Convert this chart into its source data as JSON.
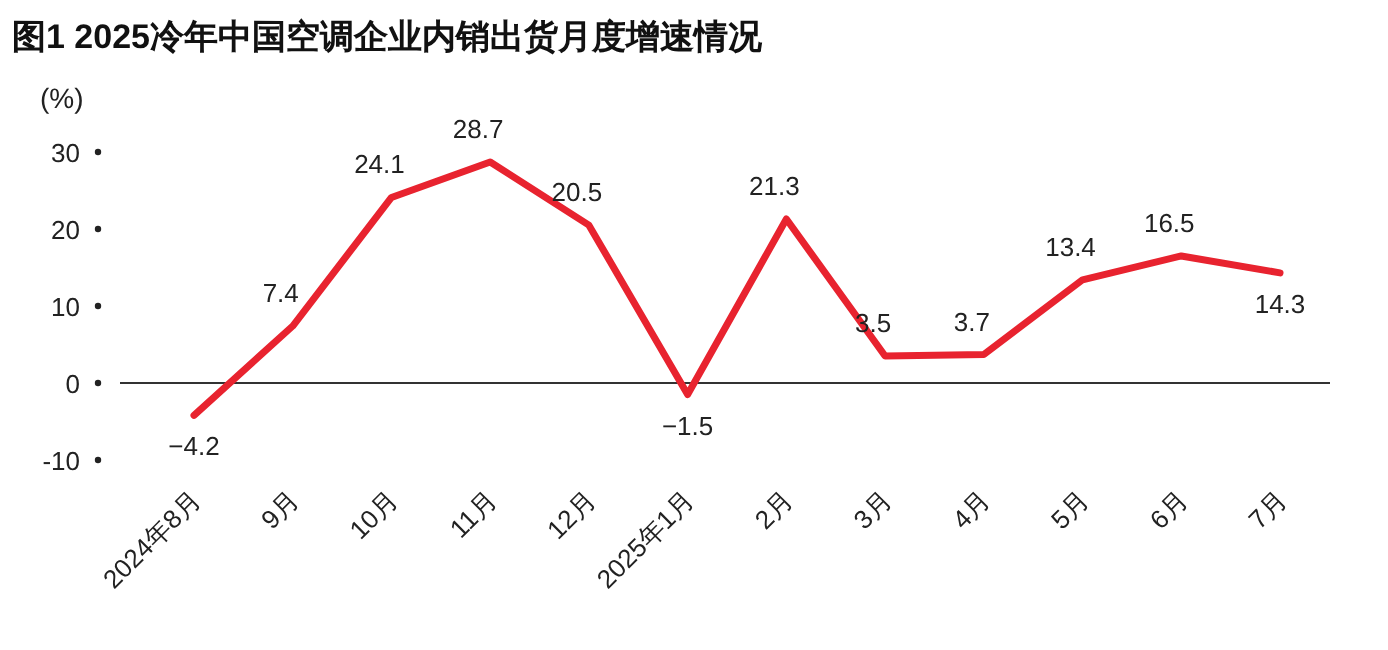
{
  "chart_data": {
    "type": "line",
    "title": "图1  2025冷年中国空调企业内销出货月度增速情况",
    "ylabel": "(%)",
    "categories": [
      "2024年8月",
      "9月",
      "10月",
      "11月",
      "12月",
      "2025年1月",
      "2月",
      "3月",
      "4月",
      "5月",
      "6月",
      "7月"
    ],
    "series": [
      {
        "color": "#e8232f",
        "values": [
          -4.2,
          7.4,
          24.1,
          28.7,
          20.5,
          -1.5,
          21.3,
          3.5,
          3.7,
          13.4,
          16.5,
          14.3
        ]
      }
    ],
    "ylim": [
      -10,
      30
    ],
    "yticks": [
      -10,
      0,
      10,
      20,
      30
    ],
    "data_labels": true,
    "marker": "none",
    "line_style": "solid"
  }
}
